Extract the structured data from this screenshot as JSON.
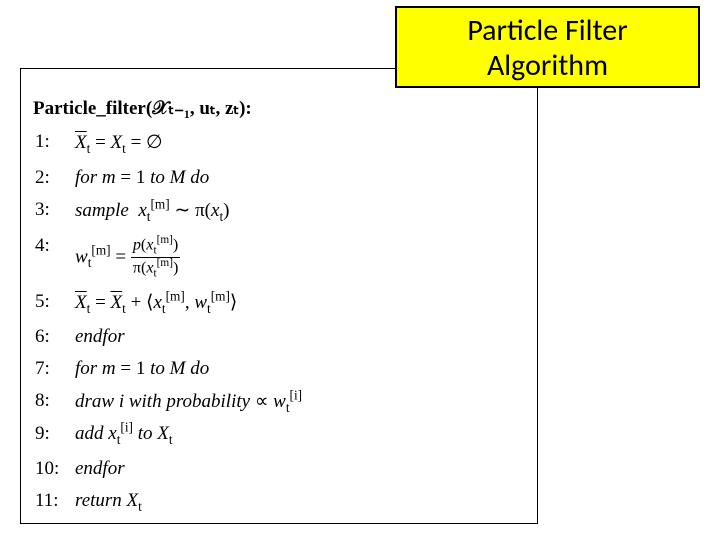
{
  "title": {
    "line1": "Particle Filter",
    "line2": "Algorithm",
    "bg_color": "#ffff00",
    "border_color": "#000000",
    "font_family": "Calibri",
    "font_size_pt": 22
  },
  "frame": {
    "border_color": "#000000",
    "bg_color": "#ffffff"
  },
  "algorithm": {
    "header_prefix": "Particle_filter",
    "header_args": "(𝒳ₜ₋₁, uₜ, zₜ):",
    "lines": [
      {
        "n": "1:",
        "indent": 1,
        "html": "<span class='bar'><span class='script'>X</span></span><sub>t</sub> = <span class='script'>X</span><sub>t</sub> = ∅"
      },
      {
        "n": "2:",
        "indent": 1,
        "html": "<span class='italic'>for m</span> = 1 <span class='italic'>to M do</span>"
      },
      {
        "n": "3:",
        "indent": 2,
        "html": "<span class='italic'>sample</span>&nbsp; <span class='italic'>x</span><span class='tight'><sub>t</sub><sup>[m]</sup></span> ∼ π(<span class='italic'>x</span><sub>t</sub>)"
      },
      {
        "n": "4:",
        "indent": 2,
        "html": "<span class='italic'>w</span><span class='tight'><sub>t</sub><sup>[m]</sup></span> = <span class='frac'><span class='top'><span class='italic'>p</span>(<span class='italic'>x</span><sub>t</sub><sup>[m]</sup>)</span><span class='bot'>π(<span class='italic'>x</span><sub>t</sub><sup>[m]</sup>)</span></span>"
      },
      {
        "n": "5:",
        "indent": 2,
        "html": "<span class='bar'><span class='script'>X</span></span><sub>t</sub> = <span class='bar'><span class='script'>X</span></span><sub>t</sub> + ⟨<span class='italic'>x</span><span class='tight'><sub>t</sub><sup>[m]</sup></span>, <span class='italic'>w</span><span class='tight'><sub>t</sub><sup>[m]</sup></span>⟩"
      },
      {
        "n": "6:",
        "indent": 1,
        "html": "<span class='italic'>endfor</span>"
      },
      {
        "n": "7:",
        "indent": 1,
        "html": "<span class='italic'>for m</span> = 1 <span class='italic'>to M do</span>"
      },
      {
        "n": "8:",
        "indent": 2,
        "html": "<span class='italic'>draw i with probability</span> ∝ <span class='italic'>w</span><span class='tight'><sub>t</sub><sup>[i]</sup></span>"
      },
      {
        "n": "9:",
        "indent": 2,
        "html": "<span class='italic'>add</span> <span class='italic'>x</span><span class='tight'><sub>t</sub><sup>[i]</sup></span> <span class='italic'>to</span> <span class='script'>X</span><sub>t</sub>"
      },
      {
        "n": "10:",
        "indent": 1,
        "html": "<span class='italic'>endfor</span>"
      },
      {
        "n": "11:",
        "indent": 1,
        "html": "<span class='italic'>return</span> <span class='script'>X</span><sub>t</sub>"
      }
    ],
    "font_family": "Times New Roman",
    "font_size_pt": 14
  }
}
